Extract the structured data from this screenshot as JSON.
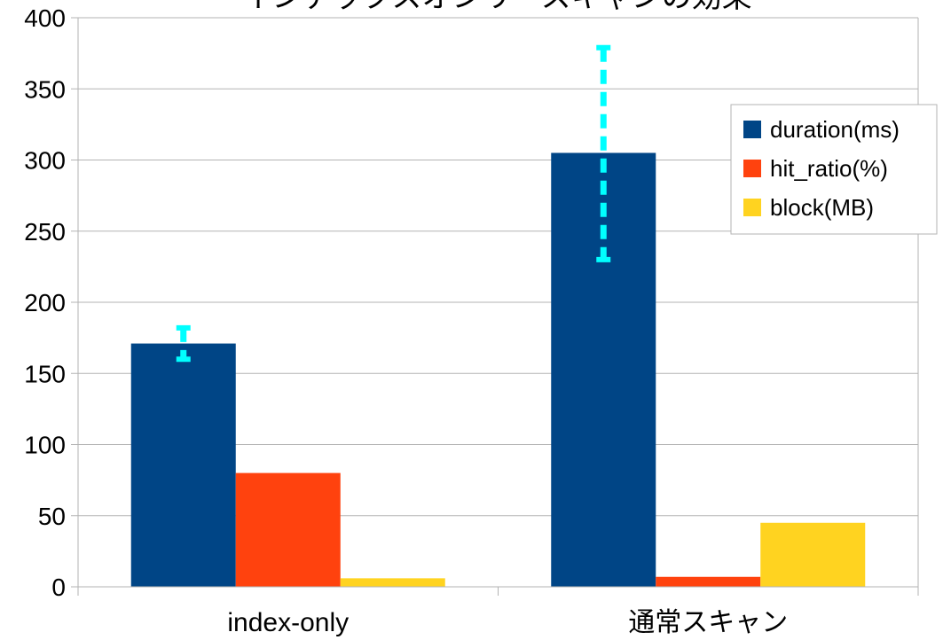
{
  "chart_data": {
    "type": "bar",
    "title": "インデックスオンリースキャンの効果",
    "categories": [
      "index-only",
      "通常スキャン"
    ],
    "series": [
      {
        "name": "duration(ms)",
        "values": [
          171,
          305
        ],
        "color": "#004586"
      },
      {
        "name": "hit_ratio(%)",
        "values": [
          80,
          7
        ],
        "color": "#ff420e"
      },
      {
        "name": "block(MB)",
        "values": [
          6,
          45
        ],
        "color": "#ffd320"
      }
    ],
    "error_bars": {
      "series": "duration(ms)",
      "ranges": [
        [
          160,
          182
        ],
        [
          230,
          379
        ]
      ],
      "color": "#00ffff",
      "style": "dashed"
    },
    "yticks": [
      0,
      50,
      100,
      150,
      200,
      250,
      300,
      350,
      400
    ],
    "ylim": [
      0,
      400
    ],
    "grid": true,
    "legend_position": "right"
  }
}
